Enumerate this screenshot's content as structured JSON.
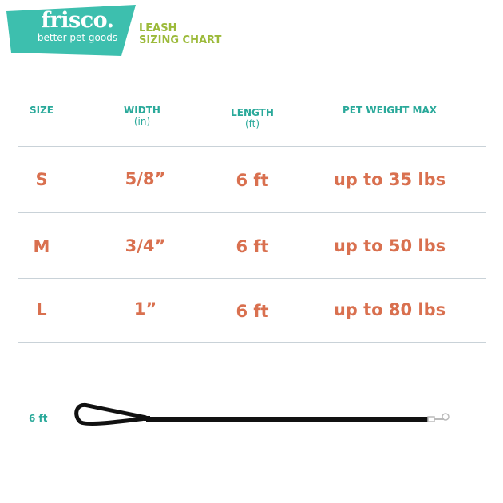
{
  "logo": {
    "brand": "frisco.",
    "tagline": "better pet goods",
    "color": "#3dbfae"
  },
  "title": {
    "line1": "LEASH",
    "line2": "SIZING CHART"
  },
  "table": {
    "headers": [
      {
        "label": "SIZE",
        "unit": ""
      },
      {
        "label": "WIDTH",
        "unit": "(in)"
      },
      {
        "label": "LENGTH",
        "unit": "(ft)"
      },
      {
        "label": "PET WEIGHT MAX",
        "unit": ""
      }
    ],
    "rows": [
      {
        "size": "S",
        "width": "5/8”",
        "length": "6 ft",
        "weight": "up to 35 lbs"
      },
      {
        "size": "M",
        "width": "3/4”",
        "length": "6 ft",
        "weight": "up to 50 lbs"
      },
      {
        "size": "L",
        "width": "1”",
        "length": "6 ft",
        "weight": "up to 80 lbs"
      }
    ]
  },
  "leash": {
    "length_label": "6 ft",
    "icon": "leash-illustration"
  },
  "colors": {
    "teal": "#2aa99a",
    "green": "#9cba3a",
    "orange": "#d9704f"
  }
}
